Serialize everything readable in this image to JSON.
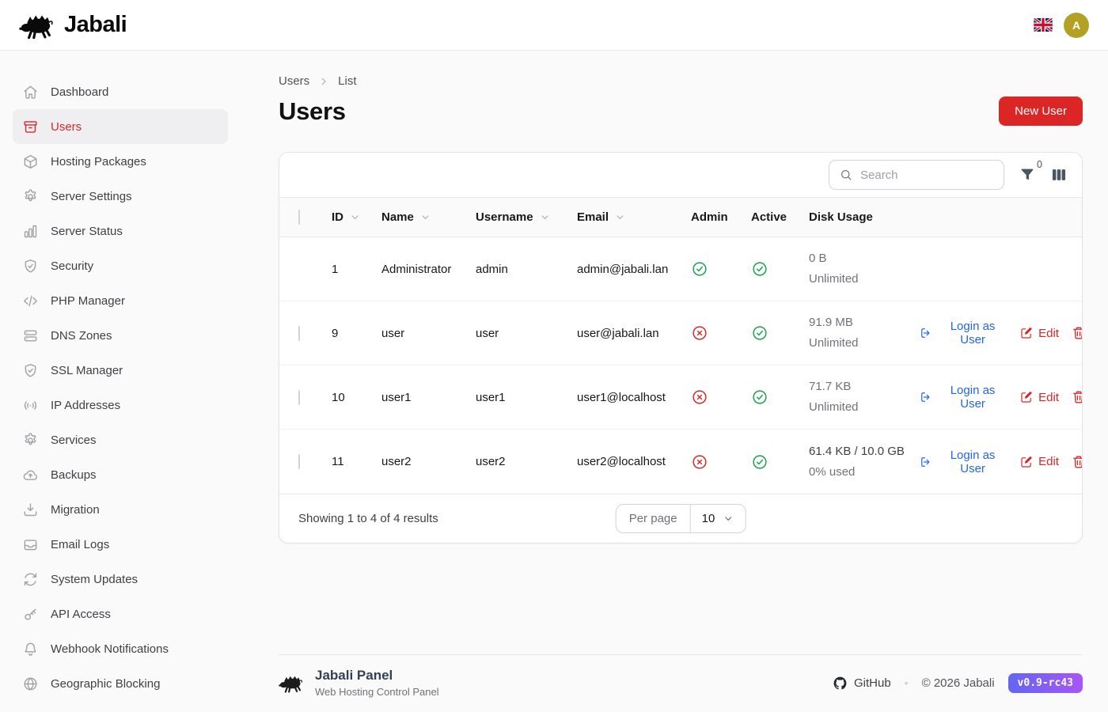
{
  "header": {
    "brand": "Jabali",
    "language": "english-uk",
    "avatar_initial": "A"
  },
  "sidebar": {
    "items": [
      {
        "label": "Dashboard",
        "icon": "home",
        "active": false
      },
      {
        "label": "Users",
        "icon": "archive-box",
        "active": true
      },
      {
        "label": "Hosting Packages",
        "icon": "cube",
        "active": false
      },
      {
        "label": "Server Settings",
        "icon": "gear",
        "active": false
      },
      {
        "label": "Server Status",
        "icon": "bar-chart",
        "active": false
      },
      {
        "label": "Security",
        "icon": "shield-check",
        "active": false
      },
      {
        "label": "PHP Manager",
        "icon": "code-bracket",
        "active": false
      },
      {
        "label": "DNS Zones",
        "icon": "server-stack",
        "active": false
      },
      {
        "label": "SSL Manager",
        "icon": "shield-check",
        "active": false
      },
      {
        "label": "IP Addresses",
        "icon": "signal",
        "active": false
      },
      {
        "label": "Services",
        "icon": "gear",
        "active": false
      },
      {
        "label": "Backups",
        "icon": "cloud-upload",
        "active": false
      },
      {
        "label": "Migration",
        "icon": "download-tray",
        "active": false
      },
      {
        "label": "Email Logs",
        "icon": "inbox",
        "active": false
      },
      {
        "label": "System Updates",
        "icon": "refresh",
        "active": false
      },
      {
        "label": "API Access",
        "icon": "key",
        "active": false
      },
      {
        "label": "Webhook Notifications",
        "icon": "bell",
        "active": false
      },
      {
        "label": "Geographic Blocking",
        "icon": "globe",
        "active": false
      }
    ]
  },
  "breadcrumb": {
    "items": [
      "Users",
      "List"
    ]
  },
  "page": {
    "title": "Users",
    "new_user_button": "New User"
  },
  "toolbar": {
    "search_placeholder": "Search",
    "filter_count": "0"
  },
  "table": {
    "columns": [
      {
        "label": "ID",
        "sortable": true
      },
      {
        "label": "Name",
        "sortable": true
      },
      {
        "label": "Username",
        "sortable": true
      },
      {
        "label": "Email",
        "sortable": true
      },
      {
        "label": "Admin",
        "sortable": false
      },
      {
        "label": "Active",
        "sortable": false
      },
      {
        "label": "Disk Usage",
        "sortable": false
      }
    ],
    "rows": [
      {
        "id": "1",
        "name": "Administrator",
        "username": "admin",
        "email": "admin@jabali.lan",
        "admin": true,
        "active": true,
        "disk_primary": "0 B",
        "disk_secondary": "Unlimited",
        "disk_primary_emphasis": false,
        "selectable": false,
        "actions": false
      },
      {
        "id": "9",
        "name": "user",
        "username": "user",
        "email": "user@jabali.lan",
        "admin": false,
        "active": true,
        "disk_primary": "91.9 MB",
        "disk_secondary": "Unlimited",
        "disk_primary_emphasis": false,
        "selectable": true,
        "actions": true
      },
      {
        "id": "10",
        "name": "user1",
        "username": "user1",
        "email": "user1@localhost",
        "admin": false,
        "active": true,
        "disk_primary": "71.7 KB",
        "disk_secondary": "Unlimited",
        "disk_primary_emphasis": false,
        "selectable": true,
        "actions": true
      },
      {
        "id": "11",
        "name": "user2",
        "username": "user2",
        "email": "user2@localhost",
        "admin": false,
        "active": true,
        "disk_primary": "61.4 KB / 10.0 GB",
        "disk_secondary": "0% used",
        "disk_primary_emphasis": true,
        "selectable": true,
        "actions": true
      }
    ],
    "actions": {
      "login_as_user": "Login as User",
      "edit": "Edit"
    }
  },
  "pagination": {
    "summary": "Showing 1 to 4 of 4 results",
    "per_page_label": "Per page",
    "per_page_value": "10"
  },
  "footer": {
    "brand": "Jabali Panel",
    "tagline": "Web Hosting Control Panel",
    "github": "GitHub",
    "separator": "•",
    "copyright": "© 2026 Jabali",
    "version": "v0.9-rc43"
  },
  "colors": {
    "primary_red": "#dc2626",
    "link_blue": "#2563eb",
    "success_green": "#16a34a",
    "avatar_gold": "#b3a125",
    "badge_gradient_start": "#6366f1",
    "badge_gradient_end": "#a855f7",
    "page_background": "#fafafa"
  }
}
